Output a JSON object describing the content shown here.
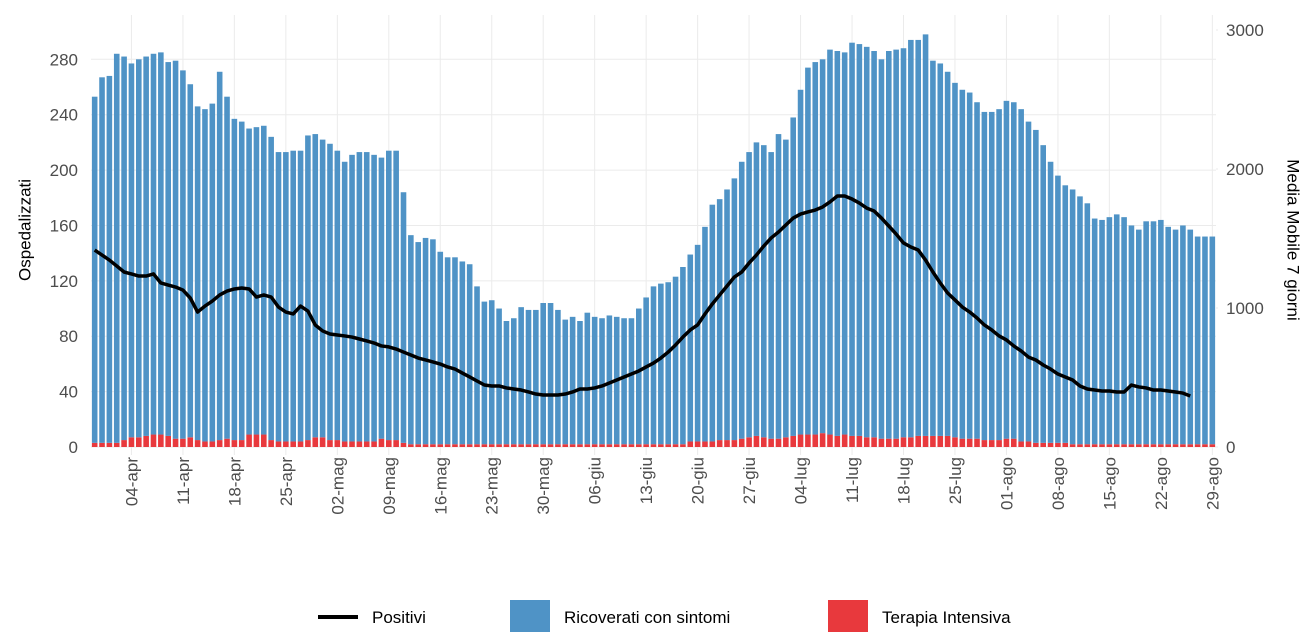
{
  "chart_data": {
    "type": "bar",
    "y_label": "Ospedalizzati",
    "y2_label": "Media Mobile 7 giorni",
    "ylim": [
      0,
      312
    ],
    "yticks": [
      0,
      40,
      80,
      120,
      160,
      200,
      240,
      280
    ],
    "y2lim": [
      0,
      3108
    ],
    "y2ticks": [
      0,
      1000,
      2000,
      3000
    ],
    "grid": true,
    "legend": "bottom",
    "categories": [
      null,
      null,
      null,
      null,
      null,
      "04-apr",
      null,
      null,
      null,
      null,
      null,
      null,
      "11-apr",
      null,
      null,
      null,
      null,
      null,
      null,
      "18-apr",
      null,
      null,
      null,
      null,
      null,
      null,
      "25-apr",
      null,
      null,
      null,
      null,
      null,
      null,
      "02-mag",
      null,
      null,
      null,
      null,
      null,
      null,
      "09-mag",
      null,
      null,
      null,
      null,
      null,
      null,
      "16-mag",
      null,
      null,
      null,
      null,
      null,
      null,
      "23-mag",
      null,
      null,
      null,
      null,
      null,
      null,
      "30-mag",
      null,
      null,
      null,
      null,
      null,
      null,
      "06-giu",
      null,
      null,
      null,
      null,
      null,
      null,
      "13-giu",
      null,
      null,
      null,
      null,
      null,
      null,
      "20-giu",
      null,
      null,
      null,
      null,
      null,
      null,
      "27-giu",
      null,
      null,
      null,
      null,
      null,
      null,
      "04-lug",
      null,
      null,
      null,
      null,
      null,
      null,
      "11-lug",
      null,
      null,
      null,
      null,
      null,
      null,
      "18-lug",
      null,
      null,
      null,
      null,
      null,
      null,
      "25-lug",
      null,
      null,
      null,
      null,
      null,
      null,
      "01-ago",
      null,
      null,
      null,
      null,
      null,
      null,
      "08-ago",
      null,
      null,
      null,
      null,
      null,
      null,
      "15-ago",
      null,
      null,
      null,
      null,
      null,
      null,
      "22-ago",
      null,
      null,
      null,
      null,
      null,
      null,
      "29-ago"
    ],
    "series": [
      {
        "name": "Positivi",
        "type": "line",
        "axis": "y2",
        "color": "#000000",
        "values": [
          1417,
          1381,
          1345,
          1302,
          1259,
          1245,
          1230,
          1230,
          1245,
          1180,
          1165,
          1151,
          1129,
          1072,
          971,
          1014,
          1050,
          1094,
          1122,
          1137,
          1144,
          1137,
          1079,
          1094,
          1079,
          1007,
          971,
          957,
          1014,
          978,
          878,
          835,
          813,
          806,
          799,
          791,
          777,
          763,
          748,
          727,
          720,
          705,
          683,
          662,
          640,
          626,
          612,
          597,
          576,
          561,
          532,
          504,
          475,
          446,
          439,
          439,
          425,
          417,
          410,
          396,
          381,
          374,
          374,
          374,
          381,
          396,
          417,
          417,
          425,
          439,
          460,
          482,
          504,
          525,
          547,
          576,
          604,
          640,
          683,
          734,
          791,
          842,
          878,
          957,
          1029,
          1094,
          1158,
          1223,
          1259,
          1324,
          1381,
          1446,
          1504,
          1547,
          1597,
          1647,
          1676,
          1691,
          1705,
          1727,
          1763,
          1806,
          1806,
          1784,
          1755,
          1719,
          1698,
          1647,
          1590,
          1532,
          1468,
          1439,
          1417,
          1345,
          1259,
          1180,
          1108,
          1058,
          1007,
          971,
          928,
          878,
          842,
          799,
          770,
          727,
          691,
          647,
          626,
          590,
          561,
          525,
          504,
          482,
          439,
          417,
          410,
          403,
          403,
          396,
          396,
          446,
          432,
          425,
          410,
          410,
          403,
          396,
          388,
          367,
          null,
          null,
          null
        ]
      },
      {
        "name": "Ricoverati con sintomi",
        "type": "bar",
        "color": "#4f93c6",
        "values": [
          250,
          264,
          265,
          281,
          277,
          270,
          273,
          274,
          275,
          276,
          270,
          273,
          266,
          255,
          241,
          240,
          244,
          266,
          247,
          232,
          230,
          221,
          222,
          223,
          219,
          209,
          209,
          210,
          210,
          220,
          219,
          215,
          214,
          209,
          202,
          207,
          209,
          209,
          207,
          203,
          209,
          209,
          181,
          151,
          146,
          149,
          148,
          139,
          135,
          135,
          132,
          130,
          114,
          103,
          104,
          98,
          89,
          91,
          99,
          97,
          97,
          102,
          102,
          97,
          90,
          92,
          89,
          95,
          92,
          91,
          93,
          92,
          91,
          91,
          98,
          106,
          114,
          116,
          117,
          121,
          128,
          135,
          142,
          155,
          171,
          174,
          181,
          189,
          200,
          206,
          212,
          211,
          207,
          220,
          215,
          230,
          249,
          265,
          269,
          270,
          278,
          278,
          276,
          284,
          283,
          282,
          279,
          274,
          280,
          281,
          281,
          287,
          286,
          290,
          271,
          269,
          263,
          256,
          252,
          250,
          243,
          237,
          237,
          239,
          244,
          243,
          240,
          231,
          226,
          215,
          203,
          193,
          186,
          184,
          179,
          174,
          163,
          162,
          164,
          166,
          164,
          158,
          155,
          161,
          161,
          162,
          157,
          155,
          158,
          155,
          150,
          150,
          150
        ]
      },
      {
        "name": "Terapia Intensiva",
        "type": "bar",
        "color": "#e8393d",
        "values": [
          3,
          3,
          3,
          3,
          5,
          7,
          7,
          8,
          9,
          9,
          8,
          6,
          6,
          7,
          5,
          4,
          4,
          5,
          6,
          5,
          5,
          9,
          9,
          9,
          5,
          4,
          4,
          4,
          4,
          5,
          7,
          7,
          5,
          5,
          4,
          4,
          4,
          4,
          4,
          6,
          5,
          5,
          3,
          2,
          2,
          2,
          2,
          2,
          2,
          2,
          2,
          2,
          2,
          2,
          2,
          2,
          2,
          2,
          2,
          2,
          2,
          2,
          2,
          2,
          2,
          2,
          2,
          2,
          2,
          2,
          2,
          2,
          2,
          2,
          2,
          2,
          2,
          2,
          2,
          2,
          2,
          4,
          4,
          4,
          4,
          5,
          5,
          5,
          6,
          7,
          8,
          7,
          6,
          6,
          7,
          8,
          9,
          9,
          9,
          10,
          9,
          8,
          9,
          8,
          8,
          7,
          7,
          6,
          6,
          6,
          7,
          7,
          8,
          8,
          8,
          8,
          8,
          7,
          6,
          6,
          6,
          5,
          5,
          5,
          6,
          6,
          4,
          4,
          3,
          3,
          3,
          3,
          3,
          2,
          2,
          2,
          2,
          2,
          2,
          2,
          2,
          2,
          2,
          2,
          2,
          2,
          2,
          2,
          2,
          2,
          2,
          2,
          2
        ]
      }
    ]
  }
}
